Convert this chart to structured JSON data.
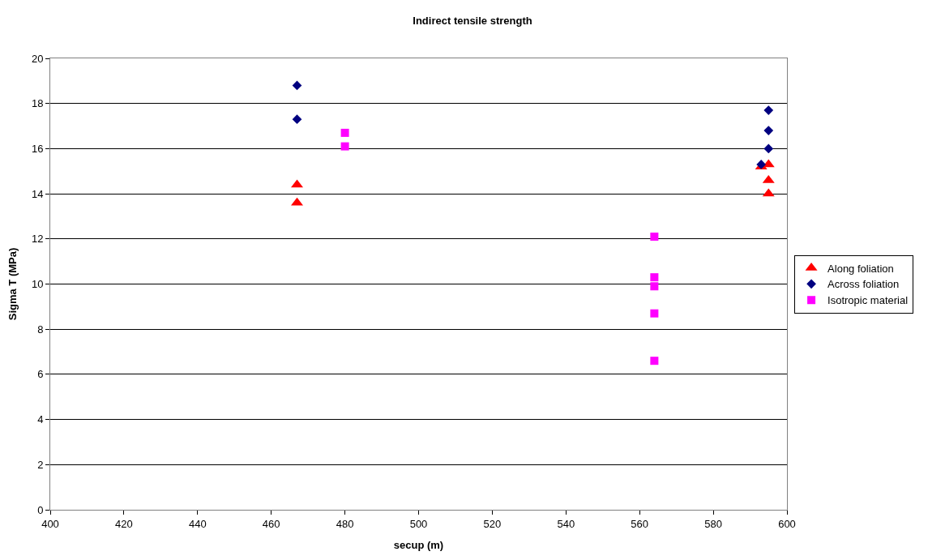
{
  "chart_data": {
    "type": "scatter",
    "title": "Indirect tensile strength",
    "xlabel": "secup (m)",
    "ylabel": "Sigma T (MPa)",
    "xlim": [
      400,
      600
    ],
    "xticks": [
      400,
      420,
      440,
      460,
      480,
      500,
      520,
      540,
      560,
      580,
      600
    ],
    "ylim": [
      0,
      20
    ],
    "yticks": [
      0,
      2,
      4,
      6,
      8,
      10,
      12,
      14,
      16,
      18,
      20
    ],
    "grid": "y",
    "legend": "right",
    "series": [
      {
        "name": "Along foliation",
        "color": "#ff0000",
        "marker": "triangle",
        "x": [
          467,
          467,
          593,
          595,
          595,
          595
        ],
        "values": [
          14.4,
          13.6,
          15.2,
          15.3,
          14.6,
          14.0
        ]
      },
      {
        "name": "Across foliation",
        "color": "#000080",
        "marker": "diamond",
        "x": [
          467,
          467,
          593,
          595,
          595,
          595
        ],
        "values": [
          18.8,
          17.3,
          15.3,
          17.7,
          16.8,
          16.0
        ]
      },
      {
        "name": "Isotropic material",
        "color": "#ff00ff",
        "marker": "square",
        "x": [
          480,
          480,
          564,
          564,
          564,
          564,
          564
        ],
        "values": [
          16.7,
          16.1,
          12.1,
          10.3,
          9.9,
          8.7,
          6.6
        ]
      }
    ]
  }
}
